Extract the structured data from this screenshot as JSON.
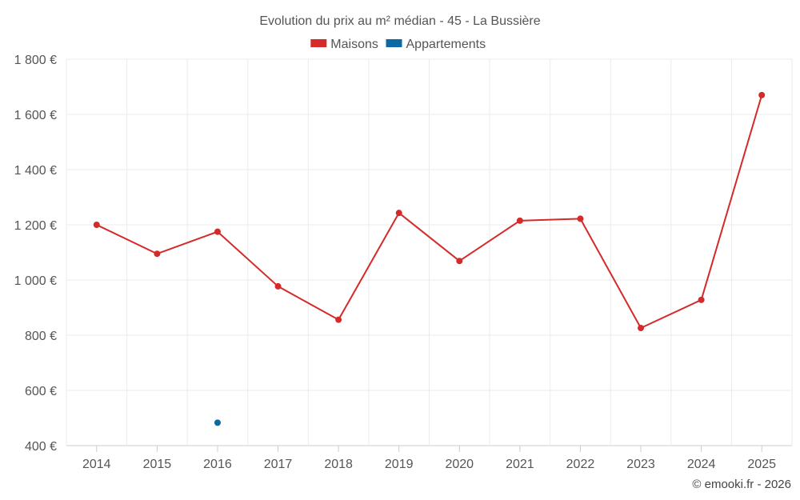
{
  "chart_data": {
    "type": "line",
    "title": "Evolution du prix au m² médian - 45 - La Bussière",
    "x": [
      "2014",
      "2015",
      "2016",
      "2017",
      "2018",
      "2019",
      "2020",
      "2021",
      "2022",
      "2023",
      "2024",
      "2025"
    ],
    "series": [
      {
        "name": "Maisons",
        "color": "#d42a2a",
        "values": [
          1200,
          1095,
          1175,
          977,
          856,
          1243,
          1069,
          1215,
          1222,
          826,
          928,
          1670
        ]
      },
      {
        "name": "Appartements",
        "color": "#0b6aa3",
        "values": [
          null,
          null,
          483,
          null,
          null,
          null,
          null,
          null,
          null,
          null,
          null,
          null
        ]
      }
    ],
    "ylim": [
      400,
      1800
    ],
    "yticks": [
      400,
      600,
      800,
      1000,
      1200,
      1400,
      1600,
      1800
    ],
    "ytick_labels": [
      "400 €",
      "600 €",
      "800 €",
      "1 000 €",
      "1 200 €",
      "1 400 €",
      "1 600 €",
      "1 800 €"
    ],
    "xlabel": "",
    "ylabel": "",
    "grid": true,
    "legend": "top-center"
  },
  "credit": "© emooki.fr - 2026"
}
